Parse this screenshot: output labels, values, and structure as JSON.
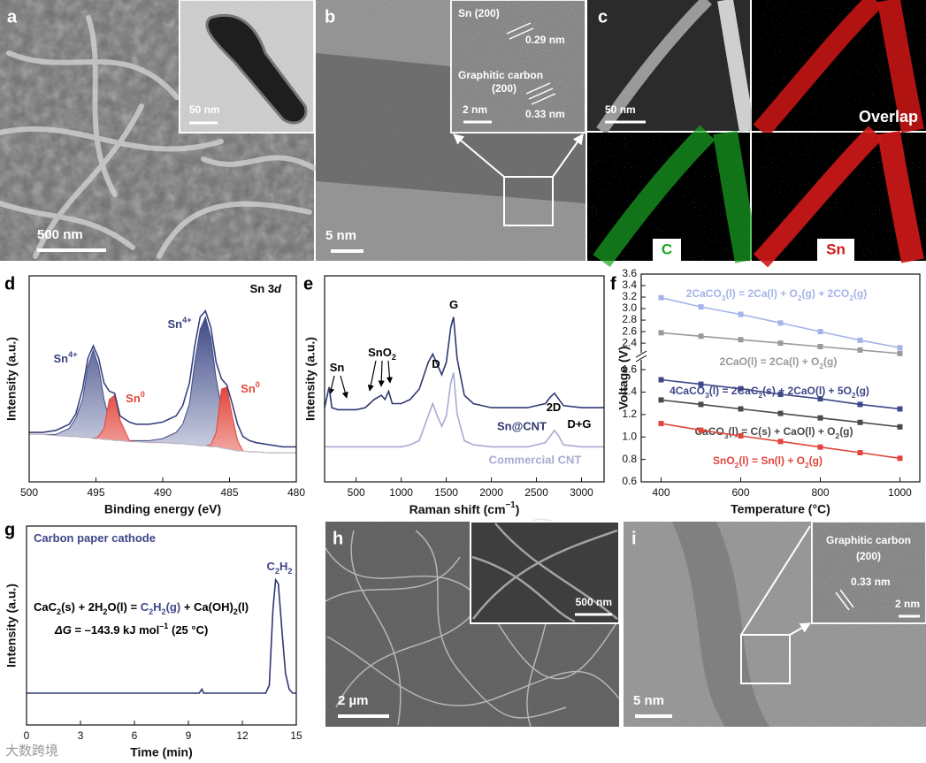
{
  "panel_a": {
    "label": "a",
    "scale_bar": "500 nm",
    "inset_scale_bar": "50 nm"
  },
  "panel_b": {
    "label": "b",
    "scale_bar": "5 nm",
    "inset": [
      "Sn (200)",
      "0.29 nm",
      "Graphitic carbon",
      "(200)",
      "2 nm",
      "0.33 nm"
    ]
  },
  "panel_c": {
    "label": "c",
    "scale_bar": "50 nm",
    "maps": [
      "Overlap",
      "C",
      "Sn"
    ]
  },
  "panel_h": {
    "label": "h",
    "scale_bar": "2 µm",
    "inset_scale_bar": "500 nm"
  },
  "panel_i": {
    "label": "i",
    "scale_bar": "5 nm",
    "inset": [
      "Graphitic carbon",
      "(200)",
      "0.33 nm",
      "2 nm"
    ]
  },
  "chart_data": [
    {
      "panel": "d",
      "type": "line",
      "x_label": "Binding energy (eV)",
      "y_label": "Intensity (a.u.)",
      "xlim": [
        500,
        480
      ],
      "xticks": [
        500,
        495,
        490,
        485,
        480
      ],
      "ylim": [
        0,
        100
      ],
      "x": [
        500,
        499,
        498,
        497,
        496.5,
        496,
        495.6,
        495.2,
        494.8,
        494.4,
        494,
        493.6,
        493.2,
        492.5,
        492,
        491,
        490,
        489,
        488.5,
        488,
        487.6,
        487.2,
        486.8,
        486.4,
        486,
        485.6,
        485.2,
        484.8,
        484.4,
        484,
        483.5,
        483,
        482,
        481,
        480
      ],
      "series": [
        {
          "color": "#3f4a86",
          "fill": "blue-gradient",
          "values": [
            23,
            23,
            23,
            26,
            31,
            40,
            56,
            64,
            56,
            40,
            30,
            25,
            22,
            20,
            20,
            20,
            21,
            24,
            28,
            38,
            58,
            74,
            80,
            70,
            50,
            36,
            26,
            20,
            16,
            15,
            14.5,
            14.5,
            14,
            14,
            14
          ]
        },
        {
          "color": "#e0463c",
          "fill": "red-gradient",
          "values": [
            23,
            23,
            22.5,
            22,
            22,
            21.5,
            21.5,
            21,
            22,
            26,
            40,
            42,
            30,
            20,
            19.5,
            19,
            19,
            18.5,
            18.5,
            18,
            18,
            17.5,
            17.5,
            18,
            24,
            45,
            46,
            32,
            20,
            15,
            14.5,
            14.5,
            14,
            14,
            14
          ]
        },
        {
          "color": "#b9b9c9",
          "fill": "#ffffff",
          "values": [
            23,
            23,
            22.5,
            22,
            22,
            21.5,
            21.5,
            21,
            21,
            20.5,
            20.5,
            20,
            20,
            19.5,
            19.5,
            19,
            19,
            18.5,
            18.5,
            18,
            18,
            17.5,
            17.5,
            17,
            17,
            16.5,
            16,
            15.5,
            15,
            15,
            14.5,
            14.5,
            14,
            14,
            14
          ]
        },
        {
          "color": "#39427e",
          "values": [
            24,
            24,
            25,
            28,
            33,
            45,
            60,
            66,
            60,
            48,
            44,
            43,
            32,
            29,
            28,
            28,
            29,
            32,
            37,
            48,
            66,
            80,
            83,
            75,
            58,
            50,
            47,
            38,
            28,
            22,
            20,
            19,
            18,
            17,
            17
          ]
        }
      ],
      "annotations": [
        {
          "parts": [
            {
              "text": "Sn 3"
            },
            {
              "text": "d",
              "style": "italic"
            }
          ],
          "color": "#000000"
        },
        {
          "parts": [
            {
              "text": "Sn"
            },
            {
              "text": "4+",
              "style": "sup"
            }
          ],
          "color": "#39427e"
        },
        {
          "parts": [
            {
              "text": "Sn"
            },
            {
              "text": "0",
              "style": "sup"
            }
          ],
          "color": "#e0463c"
        },
        {
          "parts": [
            {
              "text": "Sn"
            },
            {
              "text": "4+",
              "style": "sup"
            }
          ],
          "color": "#39427e"
        },
        {
          "parts": [
            {
              "text": "Sn"
            },
            {
              "text": "0",
              "style": "sup"
            }
          ],
          "color": "#e0463c"
        }
      ]
    },
    {
      "panel": "e",
      "type": "line",
      "x_label": {
        "parts": [
          {
            "text": "Raman shift (cm"
          },
          {
            "text": "−1",
            "style": "sup"
          },
          {
            "text": ")"
          }
        ]
      },
      "y_label": "Intensity (a.u.)",
      "xlim": [
        150,
        3250
      ],
      "xticks": [
        500,
        1000,
        1500,
        2000,
        2500,
        3000
      ],
      "ylim": [
        0,
        100
      ],
      "x": [
        150,
        200,
        230,
        300,
        400,
        500,
        600,
        650,
        700,
        780,
        820,
        860,
        900,
        1000,
        1100,
        1200,
        1300,
        1350,
        1400,
        1450,
        1500,
        1550,
        1580,
        1620,
        1700,
        1800,
        2000,
        2200,
        2400,
        2600,
        2650,
        2700,
        2750,
        2800,
        3000,
        3250
      ],
      "series": [
        {
          "name": "Sn@CNT",
          "color": "#2f3872",
          "values": [
            36,
            46,
            36,
            35,
            35,
            35,
            36,
            38,
            40,
            42,
            40,
            44,
            38,
            38,
            40,
            45,
            58,
            62,
            57,
            52,
            58,
            75,
            80,
            60,
            42,
            38,
            36,
            36,
            36,
            38,
            41,
            43,
            40,
            37,
            36,
            36
          ]
        },
        {
          "name": "Commercial CNT",
          "color": "#a9abd3",
          "values": [
            17,
            17,
            17,
            17,
            17,
            17,
            17,
            17,
            17,
            17,
            17,
            17,
            17,
            17,
            18,
            20,
            32,
            38,
            32,
            27,
            32,
            48,
            53,
            33,
            20,
            18,
            17,
            17,
            17,
            19,
            22,
            25,
            22,
            18,
            17,
            17
          ]
        }
      ],
      "annotations": [
        {
          "parts": [
            {
              "text": "Sn"
            }
          ],
          "color": "#000000"
        },
        {
          "parts": [
            {
              "text": "SnO2"
            }
          ],
          "color": "#000000"
        },
        {
          "parts": [
            {
              "text": "D"
            }
          ],
          "color": "#000000"
        },
        {
          "parts": [
            {
              "text": "G"
            }
          ],
          "color": "#000000"
        },
        {
          "parts": [
            {
              "text": "2D"
            }
          ],
          "color": "#000000"
        },
        {
          "parts": [
            {
              "text": "D+G"
            }
          ],
          "color": "#000000"
        }
      ]
    },
    {
      "panel": "f",
      "type": "line",
      "marker": "square",
      "x_label": "Temperature (°C)",
      "y_label": "Voltage (V)",
      "xlim": [
        350,
        1050
      ],
      "xticks": [
        400,
        600,
        800,
        1000
      ],
      "ylim": [
        0.6,
        3.6
      ],
      "axis_break": [
        1.6,
        2.4
      ],
      "yticks": [
        0.6,
        0.8,
        {
          "value": 1,
          "label": "1.0"
        },
        1.2,
        1.4,
        1.6,
        2.4,
        2.6,
        2.8,
        {
          "value": 3,
          "label": "3.0"
        },
        3.2,
        3.4,
        3.6
      ],
      "x": [
        400,
        500,
        600,
        700,
        800,
        900,
        1000
      ],
      "series": [
        {
          "name": "2CaCO3(l) = 2Ca(l) + O2(g) + 2CO2(g)",
          "color": "#a4b3e8",
          "values": [
            3.19,
            3.03,
            2.9,
            2.75,
            2.6,
            2.45,
            2.32
          ]
        },
        {
          "name": "2CaO(l) = 2Ca(l) + O2(g)",
          "color": "#9a9a9a",
          "values": [
            2.58,
            2.52,
            2.46,
            2.4,
            2.34,
            2.28,
            2.22
          ]
        },
        {
          "name": "4CaCO3(l) = 2CaC2(s) + 2CaO(l) + 5O2(g)",
          "color": "#3e4788",
          "values": [
            1.51,
            1.47,
            1.43,
            1.38,
            1.34,
            1.29,
            1.25
          ]
        },
        {
          "name": "CaCO3(l) = C(s) + CaO(l) + O2(g)",
          "color": "#4a4a4a",
          "values": [
            1.33,
            1.29,
            1.25,
            1.21,
            1.17,
            1.13,
            1.09
          ]
        },
        {
          "name": "SnO2(l) = Sn(l) + O2(g)",
          "color": "#e2453c",
          "values": [
            1.12,
            1.06,
            1.01,
            0.96,
            0.91,
            0.86,
            0.81
          ]
        }
      ],
      "annotations": []
    },
    {
      "panel": "g",
      "type": "line",
      "x_label": "Time (min)",
      "y_label": "Intensity (a.u.)",
      "xlim": [
        0,
        15
      ],
      "xticks": [
        0,
        3,
        6,
        9,
        12,
        15
      ],
      "ylim": [
        0,
        100
      ],
      "x": [
        0,
        9.6,
        9.75,
        9.85,
        13.3,
        13.5,
        13.7,
        13.85,
        14,
        14.2,
        14.4,
        14.6,
        14.8,
        15
      ],
      "series": [
        {
          "color": "#2f3872",
          "values": [
            16,
            16,
            18,
            16,
            16,
            20,
            58,
            73,
            71,
            48,
            26,
            18,
            16,
            16
          ]
        }
      ],
      "annotations": [
        {
          "parts": [
            {
              "text": "Carbon paper cathode"
            }
          ],
          "color": "#3e4788"
        },
        {
          "parts": [
            {
              "text": "C2H2"
            }
          ],
          "color": "#3e4788"
        },
        {
          "parts": [
            {
              "text": "CaC2(s) + 2H2O(l) = "
            },
            {
              "text": "C2H2(g)",
              "color": "#3e4788"
            },
            {
              "text": " + Ca(OH)2(l)"
            }
          ],
          "color": "#000000"
        },
        {
          "parts": [
            {
              "text": "ΔG",
              "style": "italic"
            },
            {
              "text": " = –143.9 kJ mol"
            },
            {
              "text": "–1",
              "style": "sup"
            },
            {
              "text": " (25 °C)"
            }
          ],
          "color": "#000000"
        }
      ]
    }
  ],
  "watermark": "大数跨境"
}
